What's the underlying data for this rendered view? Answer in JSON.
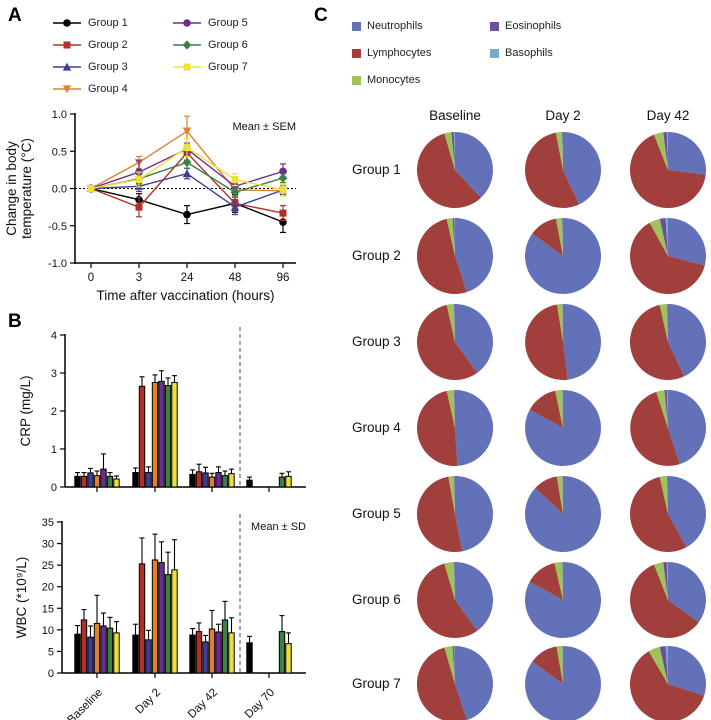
{
  "figure": {
    "panel_a_label": "A",
    "panel_b_label": "B",
    "panel_c_label": "C"
  },
  "chart_data": [
    {
      "id": "temperature",
      "type": "line",
      "panel": "A",
      "annotation": "Mean ± SEM",
      "xlabel": "Time after vaccination (hours)",
      "ylabel_lines": [
        "Change in body",
        "temperature (°C)"
      ],
      "x_categories": [
        "0",
        "3",
        "24",
        "48",
        "96"
      ],
      "ylim": [
        -1.0,
        1.0
      ],
      "yticks": [
        "1.0",
        "0.5",
        "0.0",
        "-0.5",
        "-1.0"
      ],
      "zero_line_dotted": true,
      "series": [
        {
          "name": "Group 1",
          "color": "#000000",
          "marker": "circle",
          "values": [
            0,
            -0.15,
            -0.35,
            -0.2,
            -0.45
          ],
          "errors": [
            0,
            0.08,
            0.12,
            0.12,
            0.14
          ]
        },
        {
          "name": "Group 2",
          "color": "#B13129",
          "marker": "square",
          "values": [
            0,
            -0.25,
            0.48,
            -0.2,
            -0.33
          ],
          "errors": [
            0,
            0.13,
            0.1,
            0.1,
            0.1
          ]
        },
        {
          "name": "Group 3",
          "color": "#3D3E96",
          "marker": "triangle-up",
          "values": [
            0,
            0.03,
            0.2,
            -0.25,
            -0.02
          ],
          "errors": [
            0,
            0.07,
            0.07,
            0.1,
            0.06
          ]
        },
        {
          "name": "Group 4",
          "color": "#E0812F",
          "marker": "triangle-down",
          "values": [
            0,
            0.35,
            0.77,
            -0.02,
            -0.03
          ],
          "errors": [
            0,
            0.08,
            0.2,
            0.1,
            0.07
          ]
        },
        {
          "name": "Group 5",
          "color": "#6C2D90",
          "marker": "circle",
          "values": [
            0,
            0.22,
            0.53,
            0.03,
            0.23
          ],
          "errors": [
            0,
            0.15,
            0.08,
            0.08,
            0.1
          ]
        },
        {
          "name": "Group 6",
          "color": "#3D7F45",
          "marker": "diamond",
          "values": [
            0,
            0.13,
            0.35,
            -0.05,
            0.14
          ],
          "errors": [
            0,
            0.07,
            0.08,
            0.07,
            0.06
          ]
        },
        {
          "name": "Group 7",
          "color": "#EFDF3C",
          "marker": "square",
          "values": [
            0,
            0.12,
            0.55,
            0.12,
            -0.02
          ],
          "errors": [
            0,
            0.1,
            0.12,
            0.08,
            0.08
          ]
        }
      ]
    },
    {
      "id": "crp",
      "type": "bar",
      "panel": "B",
      "ylabel": "CRP (mg/L)",
      "ylim": [
        0,
        4
      ],
      "yticks": [
        0,
        1,
        2,
        3,
        4
      ],
      "categories": [
        "Baseline",
        "Day 2",
        "Day 42",
        "Day 70"
      ],
      "show_category_labels": false,
      "dashed_separator_before_category": "Day 70",
      "series": [
        {
          "name": "Group 1",
          "color": "#000000",
          "values": [
            0.28,
            0.38,
            0.33,
            0.18
          ],
          "errors": [
            0.1,
            0.12,
            0.12,
            0.08
          ]
        },
        {
          "name": "Group 2",
          "color": "#B13129",
          "values": [
            0.28,
            2.65,
            0.4,
            null
          ],
          "errors": [
            0.1,
            0.25,
            0.2,
            null
          ]
        },
        {
          "name": "Group 3",
          "color": "#3D3E96",
          "values": [
            0.37,
            0.38,
            0.37,
            null
          ],
          "errors": [
            0.12,
            0.15,
            0.15,
            null
          ]
        },
        {
          "name": "Group 4",
          "color": "#E0812F",
          "values": [
            0.3,
            2.75,
            0.26,
            null
          ],
          "errors": [
            0.12,
            0.2,
            0.1,
            null
          ]
        },
        {
          "name": "Group 5",
          "color": "#6C2D90",
          "values": [
            0.47,
            2.78,
            0.38,
            null
          ],
          "errors": [
            0.4,
            0.28,
            0.15,
            null
          ]
        },
        {
          "name": "Group 6",
          "color": "#3D7F45",
          "values": [
            0.28,
            2.67,
            0.3,
            0.26
          ],
          "errors": [
            0.1,
            0.2,
            0.12,
            0.1
          ]
        },
        {
          "name": "Group 7",
          "color": "#EFDF3C",
          "values": [
            0.21,
            2.75,
            0.35,
            0.28
          ],
          "errors": [
            0.08,
            0.18,
            0.12,
            0.12
          ]
        }
      ]
    },
    {
      "id": "wbc",
      "type": "bar",
      "panel": "B",
      "annotation": "Mean ± SD",
      "ylabel": "WBC (*10⁹/L)",
      "ylim": [
        0,
        35
      ],
      "yticks": [
        0,
        5,
        10,
        15,
        20,
        25,
        30,
        35
      ],
      "categories": [
        "Baseline",
        "Day 2",
        "Day 42",
        "Day 70"
      ],
      "show_category_labels": true,
      "dashed_separator_before_category": "Day 70",
      "series": [
        {
          "name": "Group 1",
          "color": "#000000",
          "values": [
            9.0,
            8.8,
            8.8,
            7.0
          ],
          "errors": [
            2.0,
            2.5,
            1.5,
            1.5
          ]
        },
        {
          "name": "Group 2",
          "color": "#B13129",
          "values": [
            12.3,
            25.3,
            9.6,
            null
          ],
          "errors": [
            2.4,
            6.0,
            2.0,
            null
          ]
        },
        {
          "name": "Group 3",
          "color": "#3D3E96",
          "values": [
            8.3,
            7.7,
            7.2,
            null
          ],
          "errors": [
            2.6,
            2.2,
            1.5,
            null
          ]
        },
        {
          "name": "Group 4",
          "color": "#E0812F",
          "values": [
            11.5,
            26.2,
            10.2,
            null
          ],
          "errors": [
            6.5,
            6.0,
            4.3,
            null
          ]
        },
        {
          "name": "Group 5",
          "color": "#6C2D90",
          "values": [
            10.9,
            25.6,
            9.5,
            null
          ],
          "errors": [
            3.0,
            4.8,
            1.8,
            null
          ]
        },
        {
          "name": "Group 6",
          "color": "#3D7F45",
          "values": [
            10.4,
            22.8,
            12.3,
            9.6
          ],
          "errors": [
            2.5,
            5.2,
            4.3,
            3.7
          ]
        },
        {
          "name": "Group 7",
          "color": "#EFDF3C",
          "values": [
            9.3,
            23.9,
            9.3,
            6.8
          ],
          "errors": [
            2.6,
            7.0,
            3.5,
            2.5
          ]
        }
      ]
    },
    {
      "id": "differential",
      "type": "pie",
      "panel": "C",
      "columns": [
        "Baseline",
        "Day 2",
        "Day 42"
      ],
      "legend": [
        {
          "name": "Neutrophils",
          "color": "#6372B8"
        },
        {
          "name": "Lymphocytes",
          "color": "#A13F3C"
        },
        {
          "name": "Monocytes",
          "color": "#9DC35A"
        },
        {
          "name": "Eosinophils",
          "color": "#6A4FA1"
        },
        {
          "name": "Basophils",
          "color": "#7CA8CB"
        }
      ],
      "slice_start": "12-oclock-clockwise",
      "values_percent": [
        {
          "row": "Group 1",
          "pies": [
            [
              38,
              57.5,
              3,
              1,
              0.5
            ],
            [
              43,
              54,
              2.5,
              0.3,
              0.2
            ],
            [
              27,
              67,
              4,
              1.5,
              0.5
            ]
          ]
        },
        {
          "row": "Group 2",
          "pies": [
            [
              45,
              51.5,
              2.5,
              0.7,
              0.3
            ],
            [
              85,
              12,
              2.5,
              0.3,
              0.2
            ],
            [
              29,
              63,
              4.5,
              2.5,
              1
            ]
          ]
        },
        {
          "row": "Group 3",
          "pies": [
            [
              40,
              56.5,
              3,
              0.4,
              0.1
            ],
            [
              48,
              49.5,
              2.2,
              0.2,
              0.1
            ],
            [
              43,
              53.5,
              3,
              0.4,
              0.1
            ]
          ]
        },
        {
          "row": "Group 4",
          "pies": [
            [
              49,
              47.5,
              3,
              0.4,
              0.1
            ],
            [
              83,
              13.7,
              3,
              0.2,
              0.1
            ],
            [
              45,
              50,
              3.5,
              1,
              0.5
            ]
          ]
        },
        {
          "row": "Group 5",
          "pies": [
            [
              47,
              50.2,
              2.3,
              0.4,
              0.1
            ],
            [
              87,
              10.4,
              2.3,
              0.2,
              0.1
            ],
            [
              42,
              54.5,
              3,
              0.4,
              0.1
            ]
          ]
        },
        {
          "row": "Group 6",
          "pies": [
            [
              40,
              55.5,
              4,
              0.4,
              0.1
            ],
            [
              83,
              13.4,
              3.3,
              0.2,
              0.1
            ],
            [
              35,
              59,
              4,
              1.5,
              0.5
            ]
          ]
        },
        {
          "row": "Group 7",
          "pies": [
            [
              45,
              50.5,
              3.5,
              0.7,
              0.3
            ],
            [
              85,
              12.3,
              2.4,
              0.2,
              0.1
            ],
            [
              30,
              61.5,
              5,
              2.5,
              1
            ]
          ]
        }
      ]
    }
  ]
}
